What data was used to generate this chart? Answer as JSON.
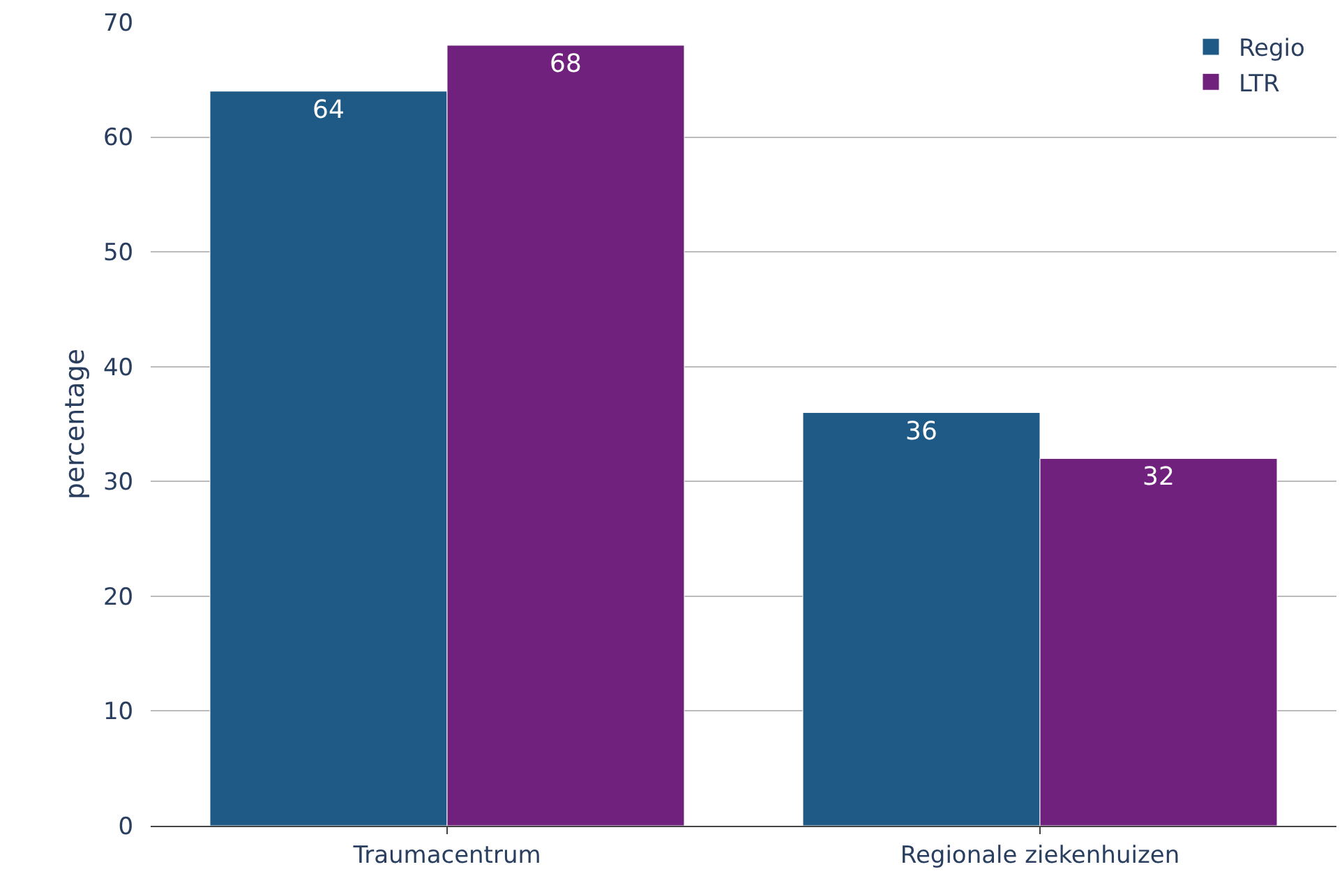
{
  "chart_data": {
    "type": "bar",
    "ylabel": "percentage",
    "categories": [
      "Traumacentrum",
      "Regionale ziekenhuizen"
    ],
    "series": [
      {
        "name": "Regio",
        "color": "#1f5a87",
        "values": [
          64,
          36
        ]
      },
      {
        "name": "LTR",
        "color": "#70217d",
        "values": [
          68,
          32
        ]
      }
    ],
    "ylim": [
      0,
      70
    ],
    "yticks": [
      0,
      10,
      20,
      30,
      40,
      50,
      60,
      70
    ],
    "grid": "y",
    "legend": "top right",
    "data_labels": true
  }
}
